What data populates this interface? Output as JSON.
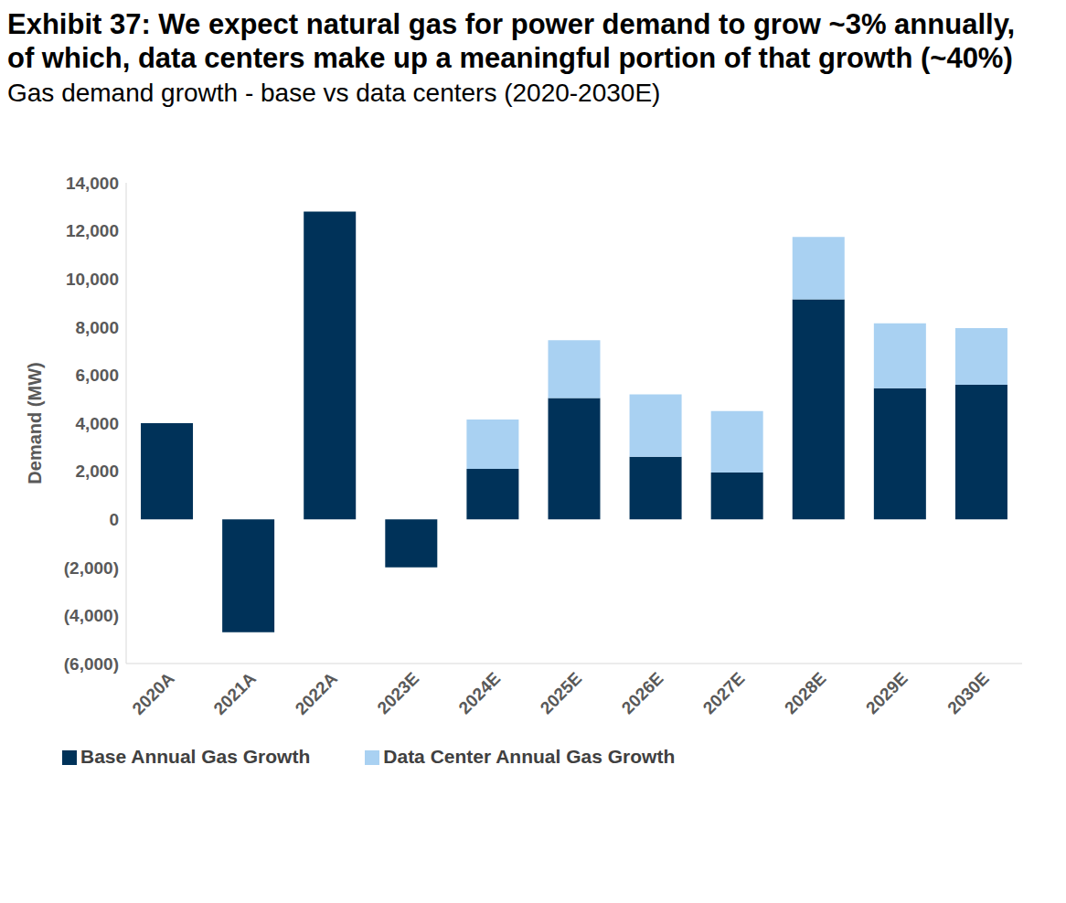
{
  "chart_data": {
    "type": "bar",
    "title": "Exhibit 37: We expect natural gas for power demand to grow ~3% annually, of which, data centers make up a meaningful portion of that growth (~40%)",
    "subtitle": "Gas demand growth - base vs data centers (2020-2030E)",
    "y_label": "Demand (MW)",
    "categories": [
      "2020A",
      "2021A",
      "2022A",
      "2023E",
      "2024E",
      "2025E",
      "2026E",
      "2027E",
      "2028E",
      "2029E",
      "2030E"
    ],
    "series": [
      {
        "name": "Base Annual Gas Growth",
        "color": "#003259",
        "values": [
          4000,
          -4700,
          12800,
          -2000,
          2100,
          5050,
          2600,
          1950,
          9150,
          5450,
          5600
        ]
      },
      {
        "name": "Data Center Annual Gas Growth",
        "color": "#a9d1f2",
        "values": [
          null,
          null,
          null,
          null,
          2050,
          2400,
          2600,
          2550,
          2600,
          2700,
          2350
        ]
      }
    ],
    "stacked": true,
    "grid": false,
    "legend": "bottom",
    "ylim": [
      -6000,
      14000
    ],
    "yticks": [
      {
        "value": -6000,
        "label": "(6,000)"
      },
      {
        "value": -4000,
        "label": "(4,000)"
      },
      {
        "value": -2000,
        "label": "(2,000)"
      },
      0,
      {
        "value": 2000,
        "label": "2,000"
      },
      {
        "value": 4000,
        "label": "4,000"
      },
      {
        "value": 6000,
        "label": "6,000"
      },
      {
        "value": 8000,
        "label": "8,000"
      },
      {
        "value": 10000,
        "label": "10,000"
      },
      {
        "value": 12000,
        "label": "12,000"
      },
      {
        "value": 14000,
        "label": "14,000"
      }
    ]
  }
}
